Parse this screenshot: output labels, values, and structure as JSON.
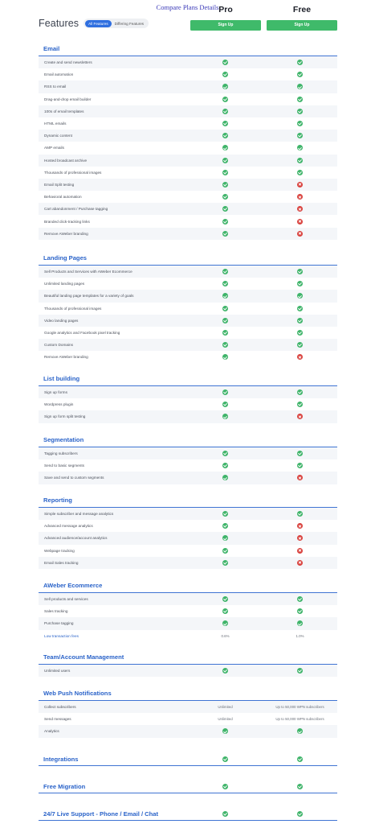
{
  "page_heading": "Compare Plans Details",
  "features_title": "Features",
  "filters": {
    "all": "All Features",
    "differing": "Differing Features"
  },
  "plans": [
    {
      "name": "Pro",
      "button": "Sign Up"
    },
    {
      "name": "Free",
      "button": "Sign Up"
    }
  ],
  "colors": {
    "accent": "#2a63c9",
    "signup": "#3fba6a",
    "check": "#3fb46a",
    "cross": "#d9413d"
  },
  "sections": [
    {
      "title": "Email",
      "rows": [
        {
          "label": "Create and send newsletters",
          "pro": "check",
          "free": "check"
        },
        {
          "label": "Email automation",
          "pro": "check",
          "free": "check"
        },
        {
          "label": "RSS to email",
          "pro": "check",
          "free": "check"
        },
        {
          "label": "Drag-and-drop email builder",
          "pro": "check",
          "free": "check"
        },
        {
          "label": "100s of email templates",
          "pro": "check",
          "free": "check"
        },
        {
          "label": "HTML emails",
          "pro": "check",
          "free": "check"
        },
        {
          "label": "Dynamic content",
          "pro": "check",
          "free": "check"
        },
        {
          "label": "AMP emails",
          "pro": "check",
          "free": "check"
        },
        {
          "label": "Hosted broadcast archive",
          "pro": "check",
          "free": "check"
        },
        {
          "label": "Thousands of professional images",
          "pro": "check",
          "free": "check"
        },
        {
          "label": "Email Split testing",
          "pro": "check",
          "free": "cross"
        },
        {
          "label": "Behavioral automation",
          "pro": "check",
          "free": "cross"
        },
        {
          "label": "Cart abandonment / Purchase tagging",
          "pro": "check",
          "free": "cross"
        },
        {
          "label": "Branded click-tracking links",
          "pro": "check",
          "free": "cross"
        },
        {
          "label": "Remove AWeber branding",
          "pro": "check",
          "free": "cross"
        }
      ]
    },
    {
      "title": "Landing Pages",
      "rows": [
        {
          "label": "Sell Products and Services with AWeber Ecommerce",
          "pro": "check",
          "free": "check"
        },
        {
          "label": "Unlimited landing pages",
          "pro": "check",
          "free": "check"
        },
        {
          "label": "Beautiful landing page templates for a variety of goals",
          "pro": "check",
          "free": "check"
        },
        {
          "label": "Thousands of professional images",
          "pro": "check",
          "free": "check"
        },
        {
          "label": "Video landing pages",
          "pro": "check",
          "free": "check"
        },
        {
          "label": "Google analytics and Facebook pixel tracking",
          "pro": "check",
          "free": "check"
        },
        {
          "label": "Custom Domains",
          "pro": "check",
          "free": "check"
        },
        {
          "label": "Remove AWeber branding",
          "pro": "check",
          "free": "cross"
        }
      ]
    },
    {
      "title": "List building",
      "rows": [
        {
          "label": "Sign up forms",
          "pro": "check",
          "free": "check"
        },
        {
          "label": "Wordpress plugin",
          "pro": "check",
          "free": "check"
        },
        {
          "label": "Sign up form split testing",
          "pro": "check",
          "free": "cross"
        }
      ]
    },
    {
      "title": "Segmentation",
      "rows": [
        {
          "label": "Tagging subscribers",
          "pro": "check",
          "free": "check"
        },
        {
          "label": "Send to basic segments",
          "pro": "check",
          "free": "check"
        },
        {
          "label": "Save and send to custom segments",
          "pro": "check",
          "free": "cross"
        }
      ]
    },
    {
      "title": "Reporting",
      "rows": [
        {
          "label": "Simple subscriber and message analytics",
          "pro": "check",
          "free": "check"
        },
        {
          "label": "Advanced message analytics",
          "pro": "check",
          "free": "cross"
        },
        {
          "label": "Advanced audience/account analytics",
          "pro": "check",
          "free": "cross"
        },
        {
          "label": "Webpage tracking",
          "pro": "check",
          "free": "cross"
        },
        {
          "label": "Email Sales tracking",
          "pro": "check",
          "free": "cross"
        }
      ]
    },
    {
      "title": "AWeber Ecommerce",
      "rows": [
        {
          "label": "Sell products and services",
          "pro": "check",
          "free": "check"
        },
        {
          "label": "Sales tracking",
          "pro": "check",
          "free": "check"
        },
        {
          "label": "Purchase tagging",
          "pro": "check",
          "free": "check"
        },
        {
          "label": "Low transaction fees",
          "pro": "text",
          "pro_text": "0.6%",
          "free": "text",
          "free_text": "1.0%",
          "blue": true
        }
      ]
    },
    {
      "title": "Team/Account Management",
      "rows": [
        {
          "label": "Unlimited users",
          "pro": "check",
          "free": "check"
        }
      ]
    },
    {
      "title": "Web Push Notifications",
      "rows": [
        {
          "label": "Collect subscribers",
          "pro": "text",
          "pro_text": "Unlimited",
          "free": "text",
          "free_text": "Up to 50,000 WPN subscribers"
        },
        {
          "label": "Send messages",
          "pro": "text",
          "pro_text": "Unlimited",
          "free": "text",
          "free_text": "Up to 50,000 WPN subscribers"
        },
        {
          "label": "Analytics",
          "pro": "check",
          "free": "check"
        }
      ]
    }
  ],
  "inline_sections": [
    {
      "title": "Integrations",
      "pro": "check",
      "free": "check"
    },
    {
      "title": "Free Migration",
      "pro": "check",
      "free": "check"
    },
    {
      "title": "24/7 Live Support - Phone / Email / Chat",
      "pro": "check",
      "free": "check"
    }
  ]
}
